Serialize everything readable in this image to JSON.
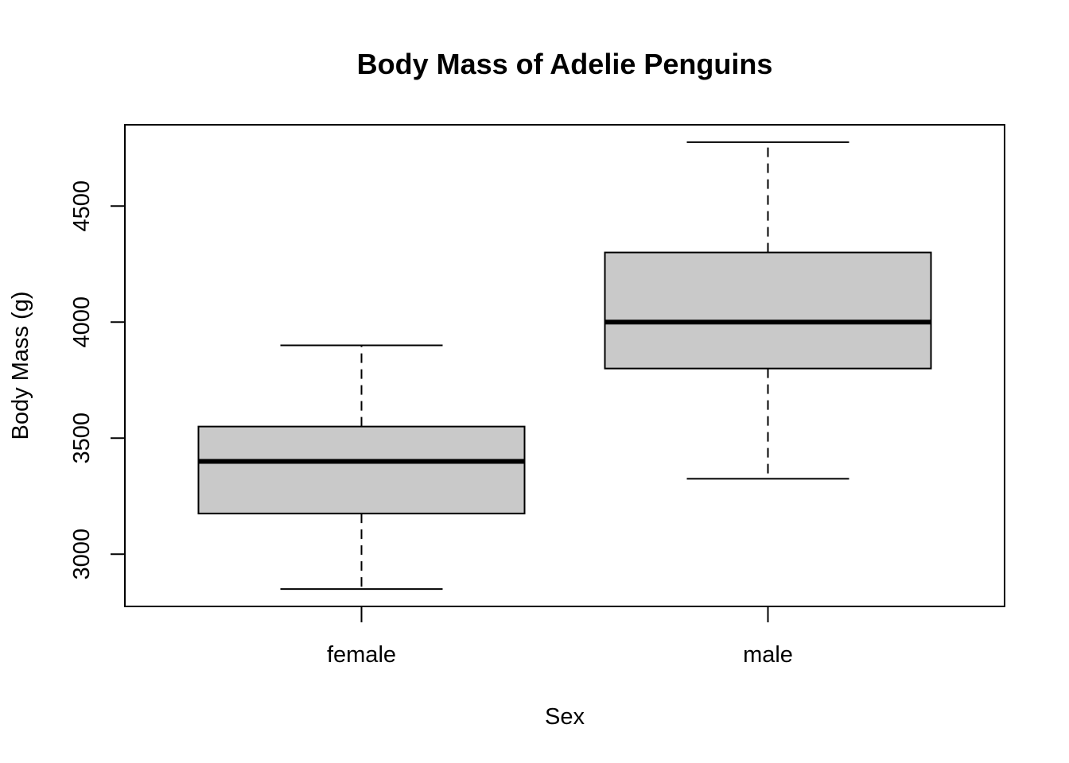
{
  "chart_data": {
    "type": "boxplot",
    "title": "Body Mass of Adelie Penguins",
    "xlabel": "Sex",
    "ylabel": "Body Mass (g)",
    "ylim": [
      2775,
      4850
    ],
    "yticks": [
      3000,
      3500,
      4000,
      4500
    ],
    "categories": [
      "female",
      "male"
    ],
    "boxes": [
      {
        "category": "female",
        "whisker_low": 2850,
        "q1": 3175,
        "median": 3400,
        "q3": 3550,
        "whisker_high": 3900
      },
      {
        "category": "male",
        "whisker_low": 3325,
        "q1": 3800,
        "median": 4000,
        "q3": 4300,
        "whisker_high": 4775
      }
    ],
    "box_fill": "#c9c9c9",
    "line_color": "#000000"
  }
}
